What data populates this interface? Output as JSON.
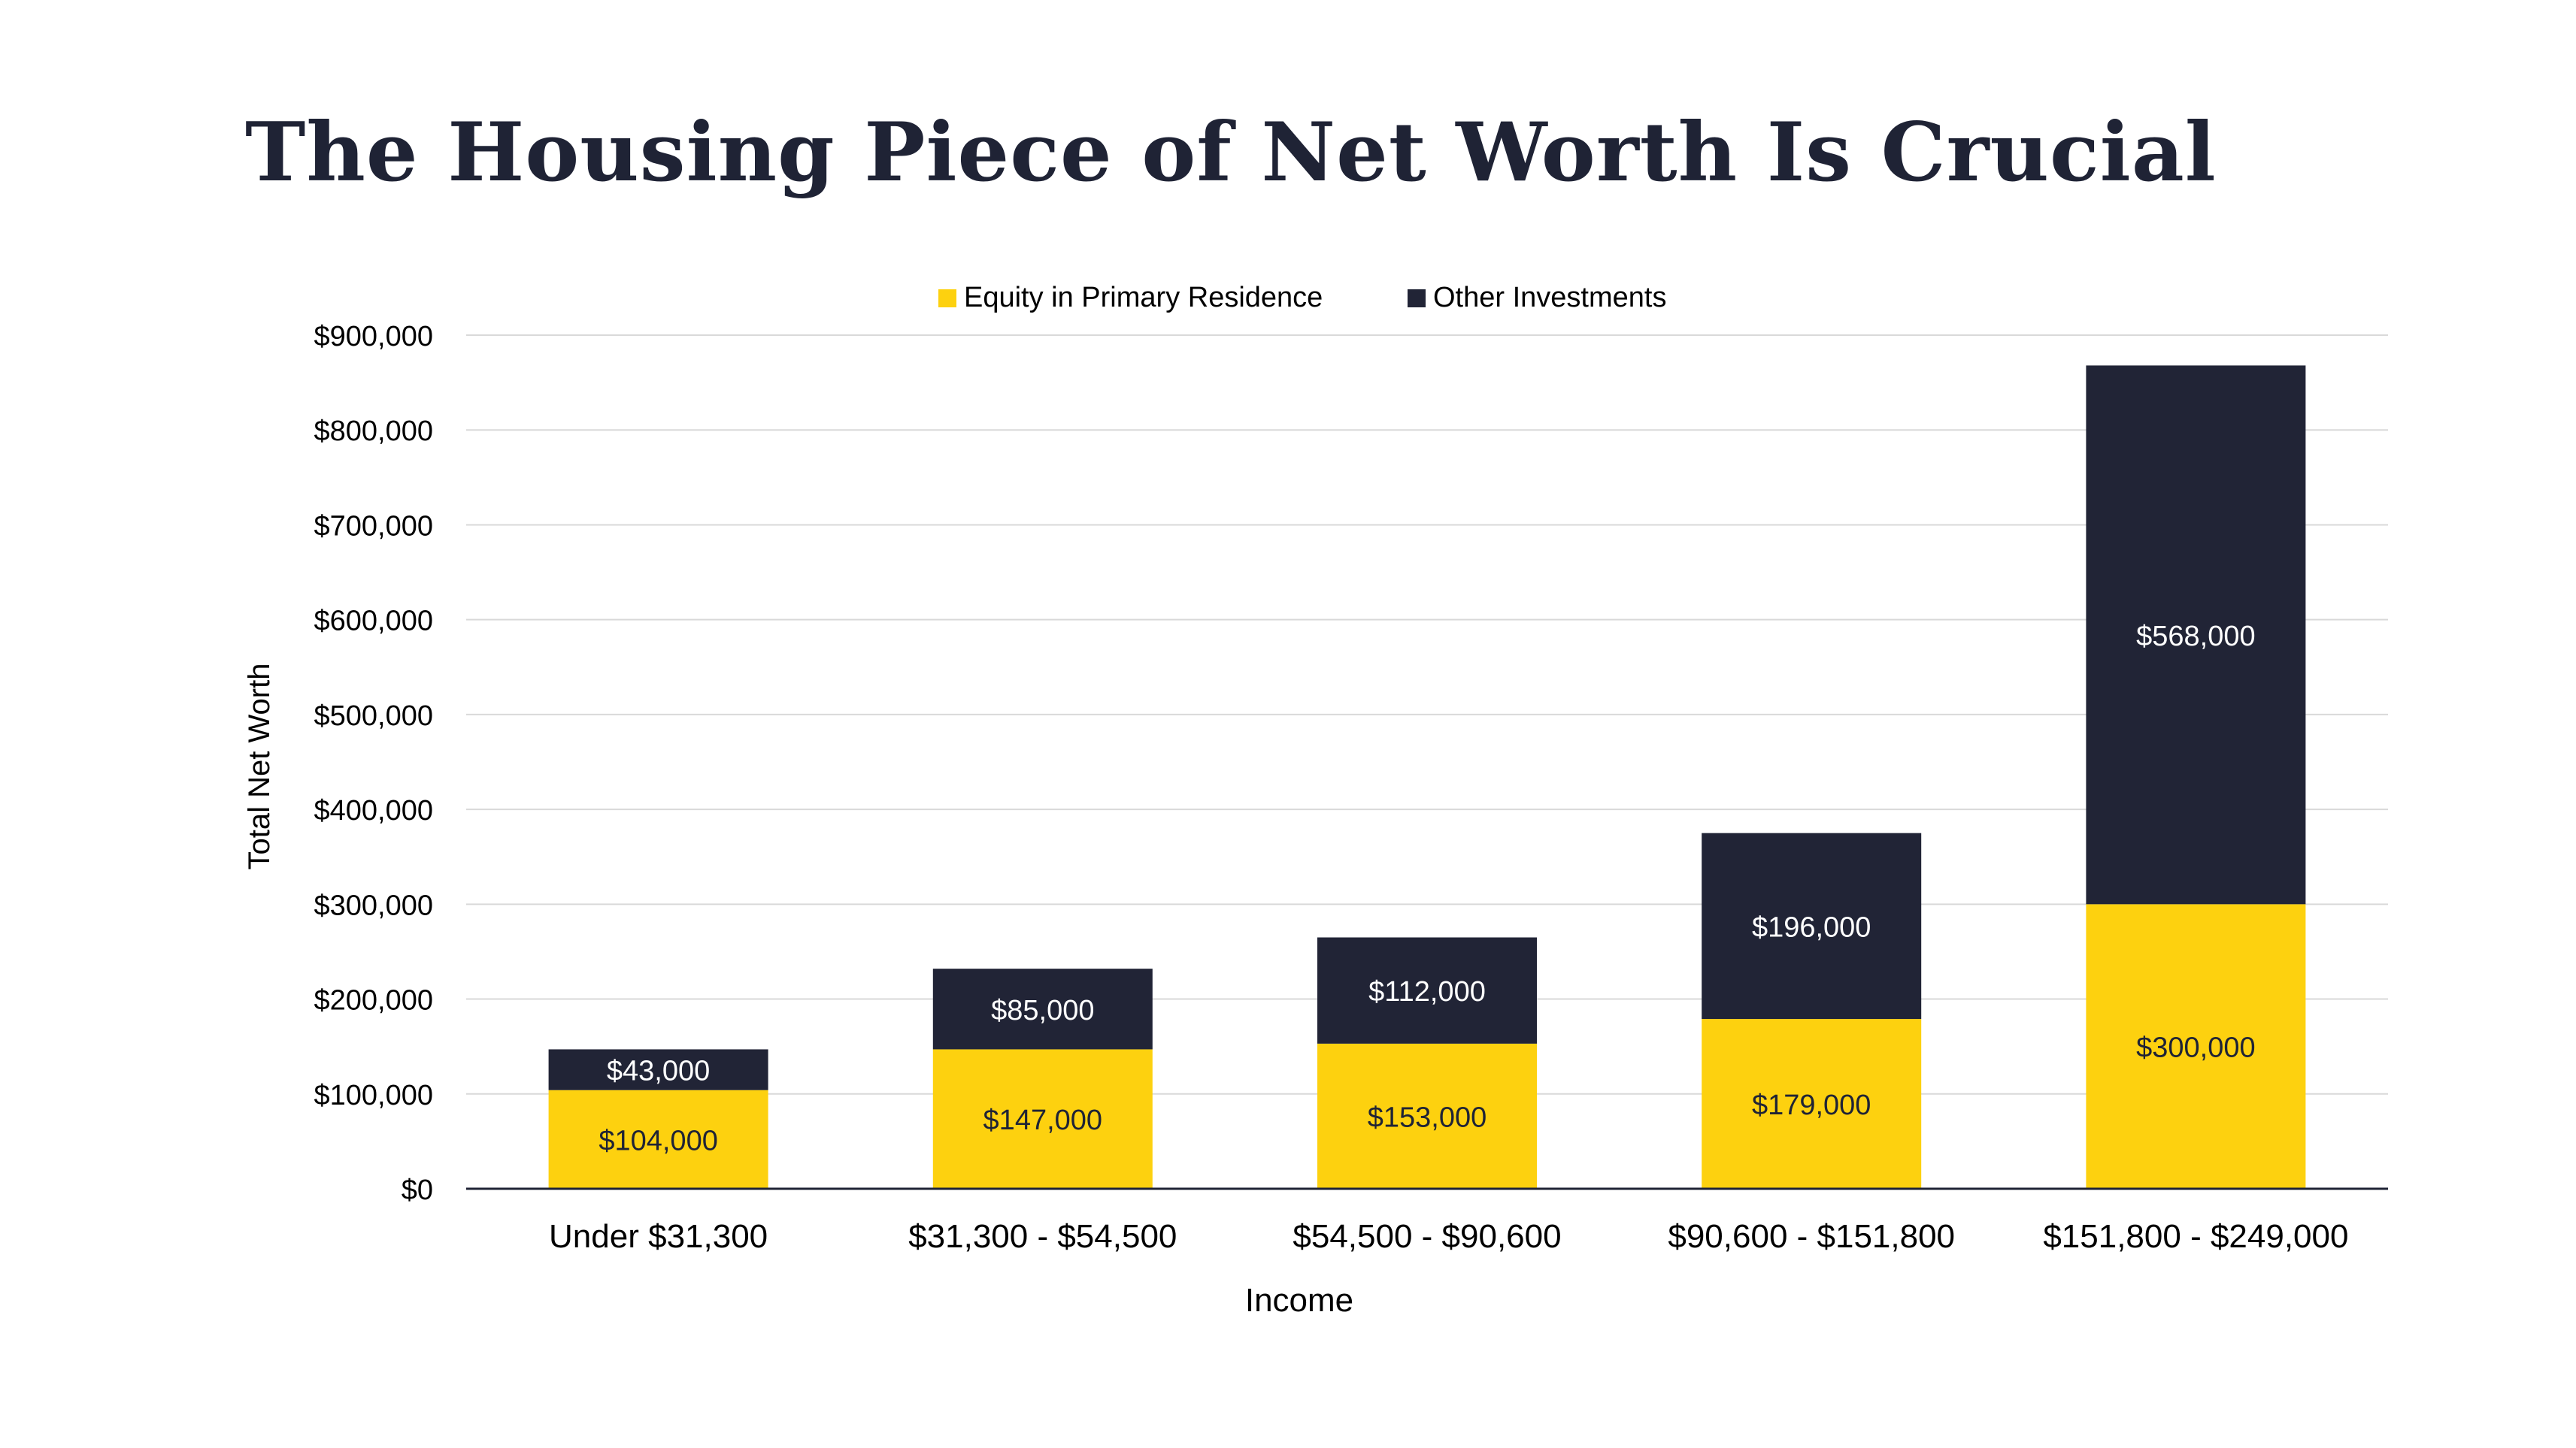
{
  "chart_data": {
    "type": "bar",
    "stacked": true,
    "title": "The Housing Piece of Net Worth Is Crucial",
    "xlabel": "Income",
    "ylabel": "Total Net Worth",
    "ylim": [
      0,
      900000
    ],
    "yticks": [
      0,
      100000,
      200000,
      300000,
      400000,
      500000,
      600000,
      700000,
      800000,
      900000
    ],
    "ytick_labels": [
      "$0",
      "$100,000",
      "$200,000",
      "$300,000",
      "$400,000",
      "$500,000",
      "$600,000",
      "$700,000",
      "$800,000",
      "$900,000"
    ],
    "grid": true,
    "legend_position": "top",
    "categories": [
      "Under $31,300",
      "$31,300 - $54,500",
      "$54,500 - $90,600",
      "$90,600 - $151,800",
      "$151,800 - $249,000"
    ],
    "series": [
      {
        "name": "Equity in Primary Residence",
        "color": "#FDD10F",
        "label_color": "#1f2335",
        "values": [
          104000,
          147000,
          153000,
          179000,
          300000
        ],
        "labels": [
          "$104,000",
          "$147,000",
          "$153,000",
          "$179,000",
          "$300,000"
        ]
      },
      {
        "name": "Other Investments",
        "color": "#212436",
        "label_color": "#ffffff",
        "values": [
          43000,
          85000,
          112000,
          196000,
          568000
        ],
        "labels": [
          "$43,000",
          "$85,000",
          "$112,000",
          "$196,000",
          "$568,000"
        ]
      }
    ]
  }
}
